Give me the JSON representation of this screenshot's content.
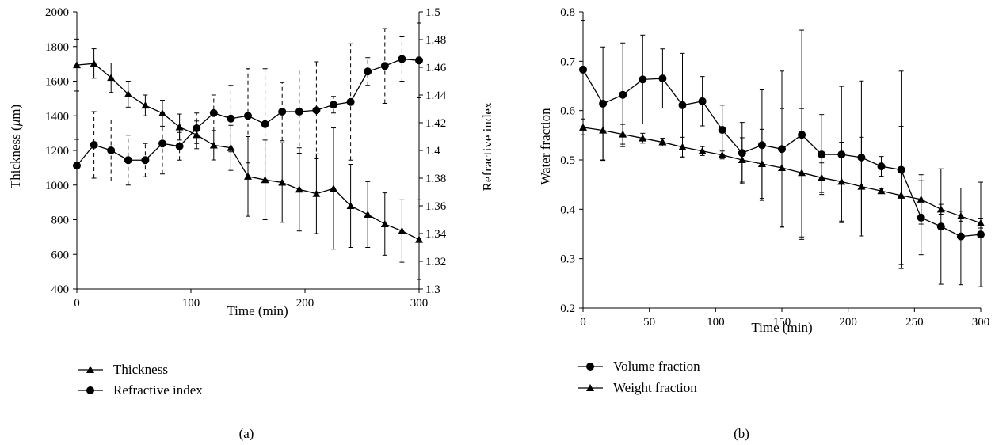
{
  "chart_data": [
    {
      "type": "line",
      "panel_label": "(a)",
      "xlabel": "Time (min)",
      "ylabel_left": "Thickness (μm)",
      "ylabel_left_prefix": "Thickness (",
      "ylabel_left_mu": "μ",
      "ylabel_left_suffix": "m)",
      "ylabel_right": "Refractive index",
      "xlim": [
        0,
        300
      ],
      "ylim_left": [
        400,
        2000
      ],
      "ylim_right": [
        1.3,
        1.5
      ],
      "xticks": [
        0,
        100,
        200,
        300
      ],
      "yticks_left": [
        400,
        600,
        800,
        1000,
        1200,
        1400,
        1600,
        1800,
        2000
      ],
      "yticks_right": [
        1.3,
        1.32,
        1.34,
        1.36,
        1.38,
        1.4,
        1.42,
        1.44,
        1.46,
        1.48,
        1.5
      ],
      "legend_position": "below",
      "x": [
        0,
        15,
        30,
        45,
        60,
        75,
        90,
        105,
        120,
        135,
        150,
        165,
        180,
        195,
        210,
        225,
        240,
        255,
        270,
        285,
        300
      ],
      "series": [
        {
          "name": "Thickness",
          "axis": "left",
          "marker": "triangle",
          "error_style": "solid",
          "values": [
            1693,
            1702,
            1620,
            1525,
            1460,
            1415,
            1335,
            1290,
            1230,
            1215,
            1050,
            1030,
            1015,
            975,
            950,
            980,
            880,
            830,
            775,
            735,
            685
          ],
          "errors": [
            150,
            85,
            85,
            75,
            60,
            75,
            75,
            80,
            85,
            130,
            230,
            230,
            230,
            240,
            230,
            350,
            240,
            190,
            180,
            180,
            230
          ]
        },
        {
          "name": "Refractive index",
          "axis": "right",
          "marker": "circle",
          "error_style": "dashed",
          "values": [
            1.389,
            1.404,
            1.4,
            1.393,
            1.393,
            1.405,
            1.403,
            1.416,
            1.427,
            1.423,
            1.425,
            1.419,
            1.428,
            1.428,
            1.429,
            1.433,
            1.435,
            1.457,
            1.461,
            1.466,
            1.465
          ],
          "errors": [
            0.019,
            0.024,
            0.022,
            0.018,
            0.012,
            0.022,
            0.01,
            0.011,
            0.013,
            0.024,
            0.034,
            0.04,
            0.021,
            0.03,
            0.035,
            0.006,
            0.042,
            0.01,
            0.027,
            0.016,
            0.027
          ]
        }
      ]
    },
    {
      "type": "line",
      "panel_label": "(b)",
      "xlabel": "Time (min)",
      "ylabel": "Water fraction",
      "xlim": [
        0,
        300
      ],
      "ylim": [
        0.2,
        0.8
      ],
      "xticks": [
        0,
        50,
        100,
        150,
        200,
        250,
        300
      ],
      "yticks": [
        0.2,
        0.3,
        0.4,
        0.5,
        0.6,
        0.7,
        0.8
      ],
      "legend_position": "below",
      "x": [
        0,
        15,
        30,
        45,
        60,
        75,
        90,
        105,
        120,
        135,
        150,
        165,
        180,
        195,
        210,
        225,
        240,
        255,
        270,
        285,
        300
      ],
      "series": [
        {
          "name": "Volume fraction",
          "marker": "circle",
          "error_style": "solid",
          "values": [
            0.683,
            0.614,
            0.632,
            0.663,
            0.665,
            0.611,
            0.619,
            0.561,
            0.514,
            0.53,
            0.522,
            0.551,
            0.511,
            0.511,
            0.505,
            0.487,
            0.48,
            0.383,
            0.365,
            0.345,
            0.349
          ],
          "errors": [
            0.1,
            0.115,
            0.105,
            0.09,
            0.06,
            0.105,
            0.05,
            0.05,
            0.062,
            0.112,
            0.158,
            0.212,
            0.081,
            0.138,
            0.155,
            0.02,
            0.2,
            0.075,
            0.117,
            0.098,
            0.106
          ]
        },
        {
          "name": "Weight fraction",
          "marker": "triangle",
          "error_style": "solid",
          "values": [
            0.566,
            0.56,
            0.552,
            0.544,
            0.536,
            0.526,
            0.518,
            0.51,
            0.5,
            0.492,
            0.484,
            0.474,
            0.464,
            0.456,
            0.446,
            0.437,
            0.428,
            0.42,
            0.4,
            0.386,
            0.372
          ],
          "errors": [
            0.015,
            0.06,
            0.02,
            0.01,
            0.008,
            0.02,
            0.009,
            0.008,
            0.045,
            0.07,
            0.12,
            0.13,
            0.03,
            0.08,
            0.1,
            0.005,
            0.14,
            0.05,
            0.01,
            0.01,
            0.01
          ]
        }
      ]
    }
  ]
}
